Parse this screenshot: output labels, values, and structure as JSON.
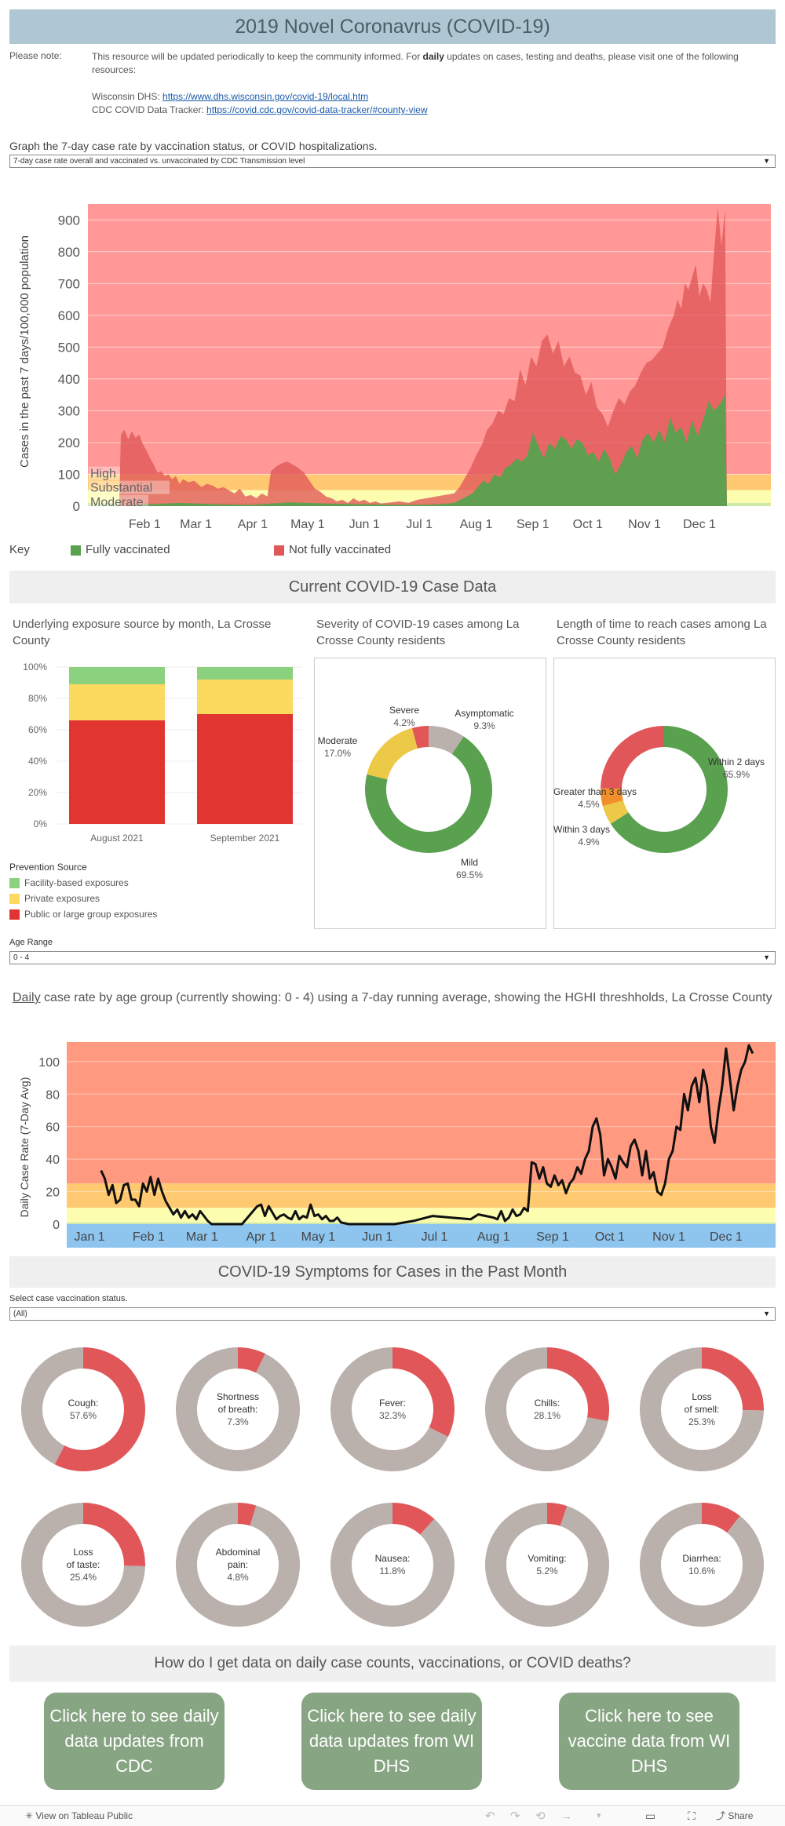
{
  "header": {
    "title": "2019 Novel Coronavrus (COVID-19)"
  },
  "note": {
    "label": "Please note:",
    "text_before": "This resource will be updated periodically to keep the community informed. For ",
    "text_bold": "daily",
    "text_after": " updates on cases, testing and deaths, please visit one of the following resources:",
    "dhs_label": "Wisconsin DHS: ",
    "dhs_url": "https://www.dhs.wisconsin.gov/covid-19/local.htm",
    "cdc_label": "CDC COVID Data Tracker: ",
    "cdc_url": "https://covid.cdc.gov/covid-data-tracker/#county-view"
  },
  "graph_select": {
    "label": "Graph the 7-day case rate by vaccination status, or COVID hospitalizations.",
    "value": "7-day case rate overall and vaccinated vs. unvaccinated by CDC Transmission level"
  },
  "key": {
    "label": "Key",
    "vaccinated": "Fully vaccinated",
    "unvaccinated": "Not fully vaccinated"
  },
  "current_header": "Current COVID-19 Case Data",
  "age_range": {
    "label": "Age Range",
    "value": "0 - 4"
  },
  "daily_title": {
    "underlined": "Daily",
    "rest": " case rate by age group (currently showing: 0 - 4) using a 7-day running average, showing the HGHI threshholds, La Crosse County"
  },
  "symptoms_header": "COVID-19 Symptoms for Cases in the Past Month",
  "vacc_status": {
    "label": "Select case vaccination status.",
    "value": "(All)"
  },
  "data_header": "How do I get data on daily case counts, vaccinations, or COVID deaths?",
  "buttons": [
    {
      "label": "Click here to see daily data updates from CDC"
    },
    {
      "label": "Click here to see daily data updates from WI DHS"
    },
    {
      "label": "Click here to see vaccine data from WI DHS"
    }
  ],
  "footer": {
    "label": "View on Tableau Public",
    "share": "Share"
  },
  "colors": {
    "high": "#ff9896",
    "substantial": "#ffc971",
    "moderate": "#fdfdb0",
    "low": "#cfeaa8",
    "unvaccinated": "#e15759",
    "vaccinated": "#59a14f",
    "facility": "#8cd17d",
    "private": "#fcd95f",
    "public": "#e03531",
    "symptom": "#e15759",
    "symptom_rest": "#bab0ac"
  },
  "chart_data": [
    {
      "type": "area",
      "title": "",
      "ylabel": "Cases in the past 7 days/100,000 population",
      "ylim": [
        0,
        950
      ],
      "yticks": [
        0,
        100,
        200,
        300,
        400,
        500,
        600,
        700,
        800,
        900
      ],
      "xticks": [
        "Feb 1",
        "Mar 1",
        "Apr 1",
        "May 1",
        "Jun 1",
        "Jul 1",
        "Aug 1",
        "Sep 1",
        "Oct 1",
        "Nov 1",
        "Dec 1"
      ],
      "xtick_days": [
        31,
        59,
        90,
        120,
        151,
        181,
        212,
        243,
        273,
        304,
        334
      ],
      "x_unit": "day of 2021",
      "xlim": [
        0,
        373
      ],
      "zones": [
        {
          "name": "High",
          "from": 100,
          "to": 950
        },
        {
          "name": "Substantial",
          "from": 50,
          "to": 100
        },
        {
          "name": "Moderate",
          "from": 10,
          "to": 50
        },
        {
          "name": "",
          "from": 0,
          "to": 10
        }
      ],
      "series": [
        {
          "name": "Not fully vaccinated",
          "x": [
            17,
            18,
            20,
            22,
            24,
            26,
            28,
            30,
            32,
            34,
            36,
            38,
            40,
            42,
            44,
            46,
            48,
            50,
            52,
            55,
            58,
            62,
            65,
            68,
            71,
            74,
            77,
            80,
            83,
            86,
            89,
            92,
            95,
            98,
            100,
            103,
            106,
            109,
            112,
            115,
            118,
            121,
            124,
            127,
            130,
            133,
            136,
            139,
            142,
            145,
            148,
            151,
            154,
            157,
            160,
            163,
            166,
            170,
            175,
            180,
            185,
            190,
            195,
            200,
            203,
            206,
            209,
            212,
            215,
            218,
            221,
            224,
            227,
            230,
            233,
            236,
            239,
            242,
            245,
            248,
            251,
            254,
            257,
            260,
            263,
            266,
            269,
            272,
            275,
            278,
            281,
            284,
            287,
            290,
            293,
            296,
            299,
            302,
            305,
            308,
            311,
            314,
            317,
            320,
            322,
            324,
            326,
            328,
            330,
            332,
            334,
            336,
            338,
            340,
            342,
            344,
            346,
            348,
            349
          ],
          "y": [
            0,
            225,
            240,
            210,
            235,
            215,
            225,
            195,
            175,
            150,
            130,
            105,
            110,
            95,
            100,
            85,
            95,
            70,
            85,
            75,
            80,
            60,
            70,
            65,
            55,
            60,
            50,
            40,
            55,
            30,
            35,
            25,
            40,
            30,
            110,
            125,
            135,
            140,
            130,
            120,
            105,
            80,
            55,
            45,
            30,
            25,
            15,
            20,
            10,
            25,
            15,
            20,
            10,
            15,
            8,
            10,
            12,
            15,
            10,
            20,
            25,
            30,
            35,
            40,
            60,
            90,
            120,
            160,
            190,
            240,
            260,
            300,
            290,
            340,
            330,
            430,
            380,
            470,
            440,
            520,
            540,
            480,
            520,
            440,
            470,
            420,
            410,
            350,
            390,
            310,
            290,
            250,
            300,
            340,
            320,
            360,
            380,
            420,
            450,
            460,
            480,
            500,
            560,
            600,
            650,
            620,
            700,
            680,
            720,
            760,
            660,
            700,
            680,
            640,
            800,
            940,
            820,
            930,
            0
          ]
        },
        {
          "name": "Fully vaccinated",
          "x": [
            17,
            30,
            50,
            70,
            90,
            110,
            130,
            150,
            170,
            190,
            200,
            205,
            210,
            213,
            216,
            219,
            222,
            225,
            228,
            231,
            234,
            237,
            240,
            243,
            246,
            249,
            252,
            255,
            258,
            261,
            264,
            267,
            270,
            273,
            276,
            279,
            282,
            285,
            288,
            291,
            294,
            297,
            300,
            303,
            306,
            309,
            312,
            315,
            318,
            321,
            324,
            327,
            330,
            333,
            336,
            339,
            342,
            345,
            348,
            349
          ],
          "y": [
            0,
            5,
            10,
            6,
            4,
            12,
            8,
            6,
            4,
            5,
            10,
            25,
            40,
            60,
            80,
            70,
            100,
            90,
            120,
            130,
            150,
            140,
            160,
            230,
            190,
            150,
            200,
            180,
            220,
            210,
            180,
            210,
            200,
            160,
            170,
            140,
            180,
            150,
            100,
            130,
            170,
            190,
            150,
            210,
            230,
            200,
            240,
            200,
            280,
            230,
            250,
            200,
            270,
            220,
            270,
            330,
            300,
            320,
            350,
            0
          ]
        }
      ],
      "zone_labels": [
        "High",
        "Substantial",
        "Moderate"
      ]
    },
    {
      "type": "bar",
      "title": "Underlying exposure source by month, La Crosse County",
      "categories": [
        "August 2021",
        "September 2021"
      ],
      "series": [
        {
          "name": "Public or large group exposures",
          "values": [
            66,
            70
          ]
        },
        {
          "name": "Private exposures",
          "values": [
            23,
            22
          ]
        },
        {
          "name": "Facility-based exposures",
          "values": [
            11,
            8
          ]
        }
      ],
      "yticks": [
        "0%",
        "20%",
        "40%",
        "60%",
        "80%",
        "100%"
      ],
      "legend_title": "Prevention Source"
    },
    {
      "type": "pie",
      "title": "Severity of COVID-19 cases among La Crosse County residents",
      "slices": [
        {
          "name": "Asymptomatic",
          "value": 9.3,
          "label": "9.3%",
          "color": "#bab0ac"
        },
        {
          "name": "Mild",
          "value": 69.5,
          "label": "69.5%",
          "color": "#59a14f"
        },
        {
          "name": "Moderate",
          "value": 17.0,
          "label": "17.0%",
          "color": "#edc948"
        },
        {
          "name": "Severe",
          "value": 4.2,
          "label": "4.2%",
          "color": "#e15759"
        }
      ]
    },
    {
      "type": "pie",
      "title": "Length of time to reach cases among La Crosse County residents",
      "slices": [
        {
          "name": "Within 2 days",
          "value": 65.9,
          "label": "65.9%",
          "color": "#59a14f"
        },
        {
          "name": "Within 3 days",
          "value": 4.9,
          "label": "4.9%",
          "color": "#edc948"
        },
        {
          "name": "Greater than 3 days",
          "value": 4.5,
          "label": "4.5%",
          "color": "#f28e2b"
        },
        {
          "name": "",
          "value": 24.7,
          "label": "",
          "color": "#e15759"
        }
      ]
    },
    {
      "type": "line",
      "title": "Daily case rate by age group (currently showing: 0 - 4) using a 7-day running average, showing the HGHI threshholds, La Crosse County",
      "ylabel": "Daily Case Rate (7-Day Avg)",
      "ylim": [
        0,
        112
      ],
      "yticks": [
        0,
        20,
        40,
        60,
        80,
        100
      ],
      "xticks": [
        "Jan 1",
        "Feb 1",
        "Mar 1",
        "Apr 1",
        "May 1",
        "Jun 1",
        "Jul 1",
        "Aug 1",
        "Sep 1",
        "Oct 1",
        "Nov 1",
        "Dec 1"
      ],
      "xtick_days": [
        0,
        31,
        59,
        90,
        120,
        151,
        181,
        212,
        243,
        273,
        304,
        334
      ],
      "x_unit": "day of 2021",
      "xlim": [
        -12,
        360
      ],
      "zones": [
        {
          "from": 25,
          "to": 112
        },
        {
          "from": 10,
          "to": 25
        },
        {
          "from": 1,
          "to": 10
        },
        {
          "from": 0,
          "to": 1
        }
      ],
      "series": [
        {
          "name": "0 - 4",
          "x": [
            6,
            8,
            10,
            12,
            14,
            16,
            18,
            20,
            22,
            24,
            26,
            28,
            30,
            32,
            34,
            36,
            38,
            40,
            42,
            44,
            46,
            48,
            50,
            52,
            54,
            56,
            58,
            60,
            62,
            64,
            66,
            68,
            70,
            80,
            88,
            90,
            92,
            94,
            96,
            98,
            100,
            102,
            104,
            106,
            108,
            110,
            112,
            114,
            116,
            118,
            120,
            122,
            124,
            126,
            128,
            130,
            132,
            136,
            140,
            150,
            160,
            170,
            180,
            190,
            200,
            204,
            208,
            212,
            214,
            216,
            218,
            220,
            222,
            224,
            226,
            228,
            230,
            232,
            234,
            236,
            238,
            240,
            242,
            244,
            246,
            248,
            250,
            252,
            254,
            256,
            258,
            260,
            262,
            264,
            266,
            268,
            270,
            272,
            274,
            276,
            278,
            280,
            282,
            284,
            286,
            288,
            290,
            292,
            294,
            296,
            298,
            300,
            302,
            304,
            306,
            308,
            310,
            312,
            314,
            316,
            318,
            320,
            322,
            324,
            326,
            328,
            330,
            332,
            334,
            336,
            338,
            340,
            342,
            344,
            346,
            348
          ],
          "y": [
            33,
            28,
            18,
            24,
            13,
            15,
            24,
            25,
            15,
            15,
            11,
            25,
            20,
            29,
            18,
            28,
            20,
            14,
            10,
            6,
            9,
            4,
            8,
            4,
            6,
            3,
            8,
            5,
            2,
            0,
            0,
            0,
            0,
            0,
            11,
            12,
            5,
            11,
            7,
            3,
            5,
            6,
            4,
            3,
            8,
            3,
            5,
            4,
            12,
            5,
            6,
            3,
            5,
            2,
            2,
            4,
            1,
            0,
            0,
            0,
            0,
            2,
            5,
            4,
            3,
            6,
            5,
            4,
            3,
            8,
            2,
            4,
            9,
            5,
            6,
            10,
            8,
            38,
            37,
            28,
            35,
            25,
            23,
            30,
            24,
            27,
            19,
            25,
            28,
            35,
            31,
            40,
            45,
            60,
            65,
            55,
            30,
            40,
            35,
            28,
            42,
            38,
            35,
            48,
            52,
            45,
            30,
            45,
            28,
            32,
            20,
            18,
            25,
            40,
            45,
            60,
            58,
            80,
            70,
            85,
            90,
            75,
            95,
            85,
            60,
            50,
            70,
            85,
            108,
            90,
            70,
            85,
            95,
            100,
            110,
            105
          ]
        }
      ],
      "zone_labels": []
    },
    {
      "type": "pie",
      "title": "COVID-19 Symptoms for Cases in the Past Month",
      "slices": [
        {
          "name": "Cough:",
          "value": 57.6,
          "label": "57.6%"
        },
        {
          "name": "Shortness of breath:",
          "value": 7.3,
          "label": "7.3%"
        },
        {
          "name": "Fever:",
          "value": 32.3,
          "label": "32.3%"
        },
        {
          "name": "Chills:",
          "value": 28.1,
          "label": "28.1%"
        },
        {
          "name": "Loss of smell:",
          "value": 25.3,
          "label": "25.3%"
        },
        {
          "name": "Loss of taste:",
          "value": 25.4,
          "label": "25.4%"
        },
        {
          "name": "Abdominal pain:",
          "value": 4.8,
          "label": "4.8%"
        },
        {
          "name": "Nausea:",
          "value": 11.8,
          "label": "11.8%"
        },
        {
          "name": "Vomiting:",
          "value": 5.2,
          "label": "5.2%"
        },
        {
          "name": "Diarrhea:",
          "value": 10.6,
          "label": "10.6%"
        }
      ]
    }
  ]
}
